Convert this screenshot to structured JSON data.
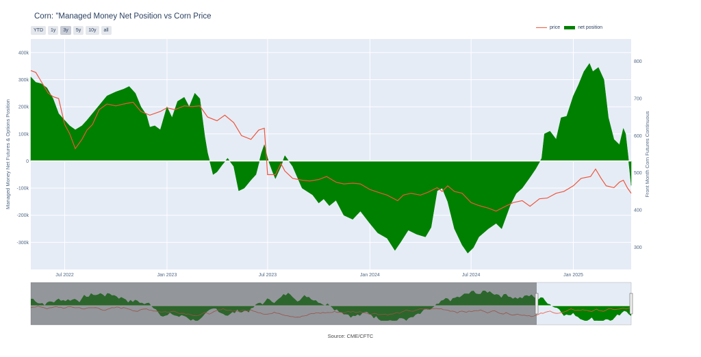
{
  "title": "Corn: \"Managed Money Net Position vs Corn Price",
  "range_buttons": [
    {
      "label": "YTD",
      "active": false
    },
    {
      "label": "1y",
      "active": false
    },
    {
      "label": "3y",
      "active": true
    },
    {
      "label": "5y",
      "active": false
    },
    {
      "label": "10y",
      "active": false
    },
    {
      "label": "all",
      "active": false
    }
  ],
  "legend": {
    "price": "price",
    "net_position": "net position"
  },
  "source": "Source: CME/CFTC",
  "colors": {
    "price": "#ef553b",
    "net_position": "#008000",
    "plot_bg": "#e5ecf6",
    "grid": "#ffffff"
  },
  "chart_data": {
    "type": "area",
    "xlim": [
      "2022-05-01",
      "2025-04-15"
    ],
    "x_tick_labels": [
      "Jul 2022",
      "Jan 2023",
      "Jul 2023",
      "Jan 2024",
      "Jul 2024",
      "Jan 2025"
    ],
    "x_ticks": [
      "2022-07-01",
      "2023-01-01",
      "2023-07-01",
      "2024-01-01",
      "2024-07-01",
      "2025-01-01"
    ],
    "y_left": {
      "label": "Managed Money Net Futures & Options Position",
      "lim": [
        -400000,
        450000
      ],
      "ticks": [
        -300000,
        -200000,
        -100000,
        0,
        100000,
        200000,
        300000,
        400000
      ],
      "tick_labels": [
        "-300k",
        "-200k",
        "-100k",
        "0",
        "100k",
        "200k",
        "300k",
        "400k"
      ]
    },
    "y_right": {
      "label": "Front Month Corn Futures Continuous",
      "lim": [
        240,
        860
      ],
      "ticks": [
        300,
        400,
        500,
        600,
        700,
        800
      ],
      "tick_labels": [
        "300",
        "400",
        "500",
        "600",
        "700",
        "800"
      ]
    },
    "grid": true,
    "legend_position": "top-right",
    "series": [
      {
        "name": "net position",
        "kind": "area",
        "axis": "left",
        "points": [
          [
            "2022-05-01",
            310000
          ],
          [
            "2022-05-10",
            290000
          ],
          [
            "2022-05-20",
            285000
          ],
          [
            "2022-05-30",
            270000
          ],
          [
            "2022-06-10",
            230000
          ],
          [
            "2022-06-20",
            175000
          ],
          [
            "2022-07-01",
            150000
          ],
          [
            "2022-07-10",
            130000
          ],
          [
            "2022-07-20",
            115000
          ],
          [
            "2022-08-01",
            130000
          ],
          [
            "2022-08-10",
            150000
          ],
          [
            "2022-08-20",
            175000
          ],
          [
            "2022-09-01",
            205000
          ],
          [
            "2022-09-15",
            240000
          ],
          [
            "2022-10-01",
            255000
          ],
          [
            "2022-10-15",
            265000
          ],
          [
            "2022-10-25",
            275000
          ],
          [
            "2022-11-05",
            250000
          ],
          [
            "2022-11-15",
            200000
          ],
          [
            "2022-11-25",
            170000
          ],
          [
            "2022-12-01",
            125000
          ],
          [
            "2022-12-10",
            130000
          ],
          [
            "2022-12-20",
            115000
          ],
          [
            "2023-01-01",
            200000
          ],
          [
            "2023-01-10",
            160000
          ],
          [
            "2023-01-20",
            220000
          ],
          [
            "2023-02-01",
            235000
          ],
          [
            "2023-02-10",
            200000
          ],
          [
            "2023-02-20",
            250000
          ],
          [
            "2023-03-01",
            230000
          ],
          [
            "2023-03-10",
            90000
          ],
          [
            "2023-03-15",
            30000
          ],
          [
            "2023-03-20",
            -10000
          ],
          [
            "2023-03-25",
            -50000
          ],
          [
            "2023-04-01",
            -40000
          ],
          [
            "2023-04-10",
            -15000
          ],
          [
            "2023-04-20",
            10000
          ],
          [
            "2023-05-01",
            -20000
          ],
          [
            "2023-05-10",
            -110000
          ],
          [
            "2023-05-20",
            -100000
          ],
          [
            "2023-06-01",
            -70000
          ],
          [
            "2023-06-10",
            -50000
          ],
          [
            "2023-06-20",
            30000
          ],
          [
            "2023-06-25",
            60000
          ],
          [
            "2023-07-01",
            10000
          ],
          [
            "2023-07-10",
            -40000
          ],
          [
            "2023-07-15",
            -65000
          ],
          [
            "2023-07-25",
            -20000
          ],
          [
            "2023-08-01",
            20000
          ],
          [
            "2023-08-15",
            -20000
          ],
          [
            "2023-09-01",
            -100000
          ],
          [
            "2023-09-20",
            -125000
          ],
          [
            "2023-10-01",
            -155000
          ],
          [
            "2023-10-10",
            -140000
          ],
          [
            "2023-10-20",
            -165000
          ],
          [
            "2023-11-01",
            -145000
          ],
          [
            "2023-11-15",
            -200000
          ],
          [
            "2023-12-01",
            -215000
          ],
          [
            "2023-12-15",
            -185000
          ],
          [
            "2024-01-01",
            -230000
          ],
          [
            "2024-01-15",
            -265000
          ],
          [
            "2024-02-01",
            -285000
          ],
          [
            "2024-02-15",
            -330000
          ],
          [
            "2024-02-25",
            -300000
          ],
          [
            "2024-03-10",
            -255000
          ],
          [
            "2024-03-25",
            -270000
          ],
          [
            "2024-04-10",
            -280000
          ],
          [
            "2024-04-20",
            -245000
          ],
          [
            "2024-05-01",
            -110000
          ],
          [
            "2024-05-10",
            -100000
          ],
          [
            "2024-05-20",
            -150000
          ],
          [
            "2024-06-01",
            -250000
          ],
          [
            "2024-06-15",
            -310000
          ],
          [
            "2024-06-25",
            -340000
          ],
          [
            "2024-07-05",
            -320000
          ],
          [
            "2024-07-15",
            -280000
          ],
          [
            "2024-08-01",
            -250000
          ],
          [
            "2024-08-15",
            -230000
          ],
          [
            "2024-08-25",
            -250000
          ],
          [
            "2024-09-10",
            -160000
          ],
          [
            "2024-09-20",
            -120000
          ],
          [
            "2024-10-01",
            -100000
          ],
          [
            "2024-10-15",
            -60000
          ],
          [
            "2024-10-25",
            -30000
          ],
          [
            "2024-11-05",
            10000
          ],
          [
            "2024-11-10",
            100000
          ],
          [
            "2024-11-20",
            110000
          ],
          [
            "2024-12-01",
            80000
          ],
          [
            "2024-12-10",
            160000
          ],
          [
            "2024-12-20",
            165000
          ],
          [
            "2025-01-01",
            240000
          ],
          [
            "2025-01-10",
            280000
          ],
          [
            "2025-01-20",
            330000
          ],
          [
            "2025-01-30",
            360000
          ],
          [
            "2025-02-05",
            330000
          ],
          [
            "2025-02-15",
            345000
          ],
          [
            "2025-02-25",
            300000
          ],
          [
            "2025-03-05",
            160000
          ],
          [
            "2025-03-15",
            80000
          ],
          [
            "2025-03-25",
            60000
          ],
          [
            "2025-04-01",
            120000
          ],
          [
            "2025-04-05",
            100000
          ],
          [
            "2025-04-10",
            10000
          ],
          [
            "2025-04-15",
            -90000
          ]
        ]
      },
      {
        "name": "price",
        "kind": "line",
        "axis": "right",
        "points": [
          [
            "2022-05-01",
            775
          ],
          [
            "2022-05-10",
            770
          ],
          [
            "2022-05-20",
            745
          ],
          [
            "2022-06-01",
            715
          ],
          [
            "2022-06-10",
            705
          ],
          [
            "2022-06-20",
            700
          ],
          [
            "2022-07-01",
            630
          ],
          [
            "2022-07-10",
            605
          ],
          [
            "2022-07-20",
            565
          ],
          [
            "2022-08-01",
            590
          ],
          [
            "2022-08-10",
            615
          ],
          [
            "2022-08-20",
            630
          ],
          [
            "2022-09-01",
            670
          ],
          [
            "2022-09-15",
            685
          ],
          [
            "2022-10-01",
            680
          ],
          [
            "2022-10-15",
            685
          ],
          [
            "2022-11-01",
            690
          ],
          [
            "2022-11-15",
            665
          ],
          [
            "2022-12-01",
            655
          ],
          [
            "2022-12-20",
            665
          ],
          [
            "2023-01-01",
            675
          ],
          [
            "2023-01-15",
            670
          ],
          [
            "2023-02-01",
            680
          ],
          [
            "2023-02-15",
            678
          ],
          [
            "2023-03-01",
            680
          ],
          [
            "2023-03-15",
            650
          ],
          [
            "2023-04-01",
            640
          ],
          [
            "2023-04-15",
            655
          ],
          [
            "2023-05-01",
            635
          ],
          [
            "2023-05-15",
            600
          ],
          [
            "2023-06-01",
            590
          ],
          [
            "2023-06-15",
            615
          ],
          [
            "2023-06-25",
            620
          ],
          [
            "2023-07-01",
            495
          ],
          [
            "2023-07-15",
            495
          ],
          [
            "2023-07-25",
            525
          ],
          [
            "2023-08-01",
            505
          ],
          [
            "2023-08-15",
            485
          ],
          [
            "2023-09-01",
            480
          ],
          [
            "2023-09-15",
            478
          ],
          [
            "2023-10-01",
            482
          ],
          [
            "2023-10-15",
            490
          ],
          [
            "2023-11-01",
            475
          ],
          [
            "2023-11-15",
            470
          ],
          [
            "2023-12-01",
            472
          ],
          [
            "2023-12-15",
            470
          ],
          [
            "2024-01-01",
            455
          ],
          [
            "2024-01-15",
            448
          ],
          [
            "2024-02-01",
            440
          ],
          [
            "2024-02-20",
            425
          ],
          [
            "2024-03-01",
            440
          ],
          [
            "2024-03-15",
            445
          ],
          [
            "2024-04-01",
            440
          ],
          [
            "2024-04-15",
            448
          ],
          [
            "2024-05-01",
            460
          ],
          [
            "2024-05-10",
            450
          ],
          [
            "2024-05-20",
            465
          ],
          [
            "2024-06-01",
            450
          ],
          [
            "2024-06-15",
            445
          ],
          [
            "2024-07-01",
            420
          ],
          [
            "2024-07-15",
            412
          ],
          [
            "2024-08-01",
            405
          ],
          [
            "2024-08-15",
            397
          ],
          [
            "2024-09-01",
            410
          ],
          [
            "2024-09-15",
            420
          ],
          [
            "2024-10-01",
            425
          ],
          [
            "2024-10-15",
            410
          ],
          [
            "2024-11-01",
            430
          ],
          [
            "2024-11-15",
            432
          ],
          [
            "2024-12-01",
            445
          ],
          [
            "2024-12-15",
            450
          ],
          [
            "2025-01-01",
            465
          ],
          [
            "2025-01-15",
            485
          ],
          [
            "2025-02-01",
            490
          ],
          [
            "2025-02-10",
            510
          ],
          [
            "2025-02-20",
            485
          ],
          [
            "2025-03-01",
            465
          ],
          [
            "2025-03-15",
            460
          ],
          [
            "2025-03-25",
            475
          ],
          [
            "2025-04-01",
            480
          ],
          [
            "2025-04-08",
            460
          ],
          [
            "2025-04-15",
            445
          ]
        ]
      }
    ]
  }
}
